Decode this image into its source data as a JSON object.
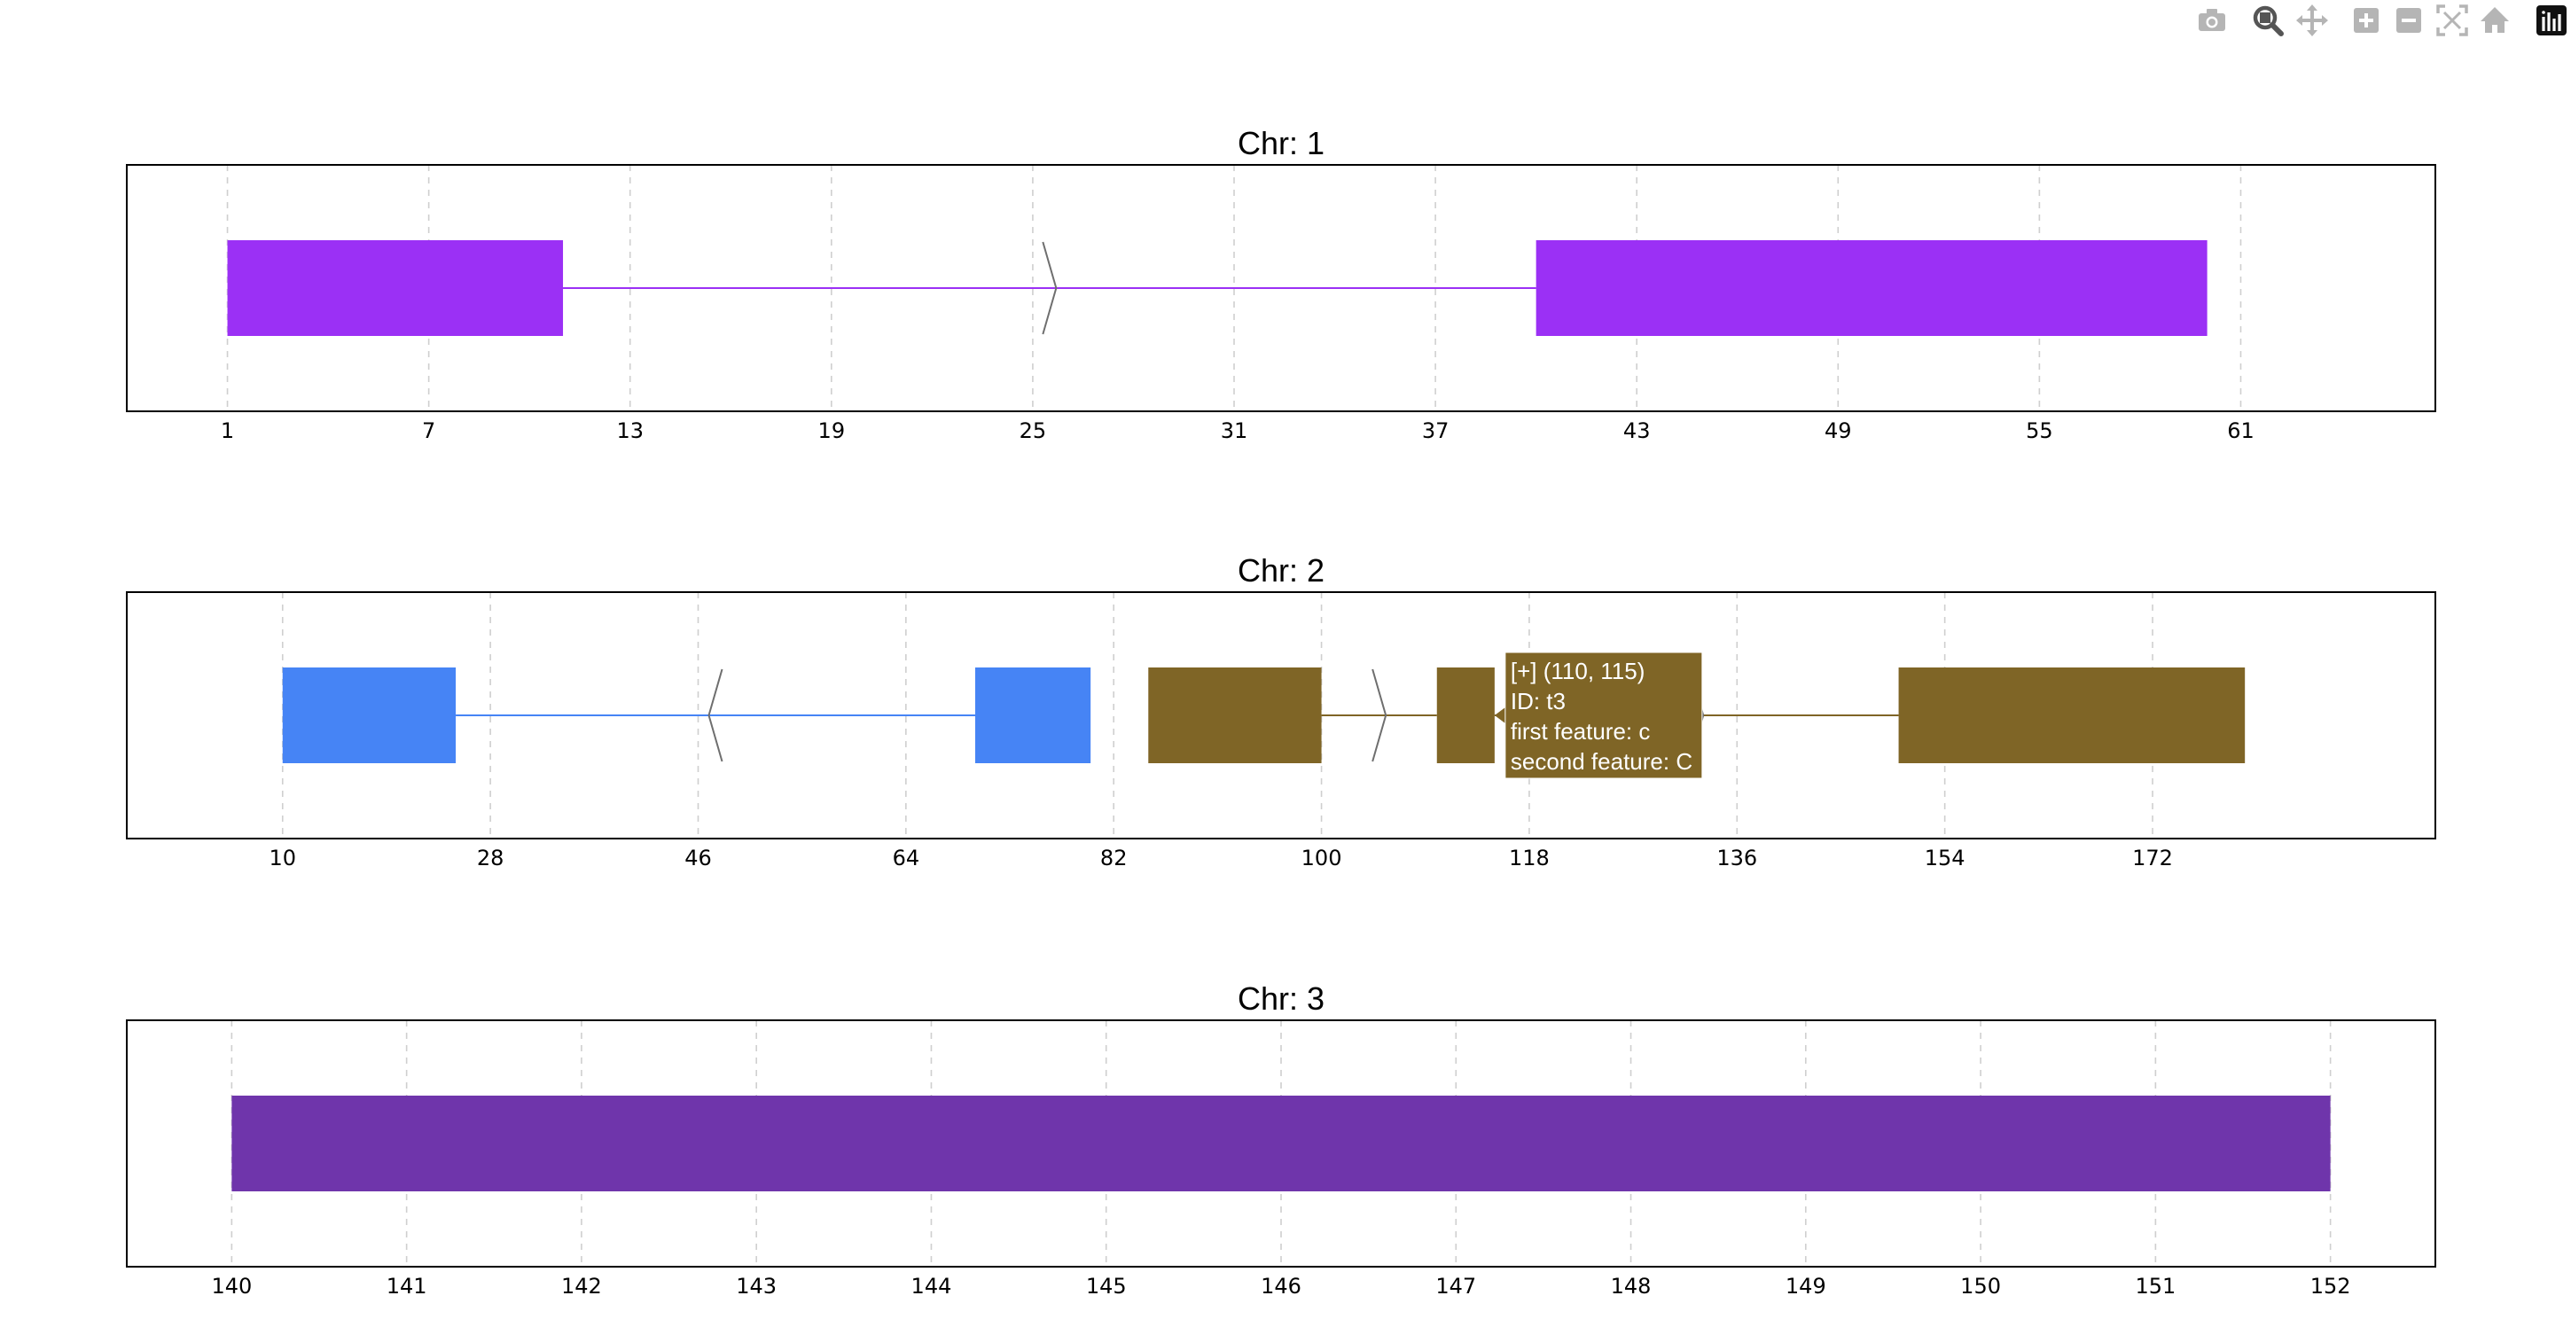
{
  "modebar": {
    "buttons": [
      {
        "icon": "camera-icon",
        "label": "Download plot as png"
      },
      {
        "icon": "zoom-icon",
        "label": "Zoom"
      },
      {
        "icon": "pan-icon",
        "label": "Pan"
      },
      {
        "icon": "zoom-in-icon",
        "label": "Zoom in"
      },
      {
        "icon": "zoom-out-icon",
        "label": "Zoom out"
      },
      {
        "icon": "autoscale-icon",
        "label": "Autoscale"
      },
      {
        "icon": "home-icon",
        "label": "Reset axes"
      },
      {
        "icon": "plotly-logo-icon",
        "label": "Produced with Plotly"
      }
    ],
    "active": "zoom-icon",
    "color_inactive": "#b5b5b5",
    "color_active": "#555555"
  },
  "chart_data": [
    {
      "type": "gene-structure",
      "title": "Chr: 1",
      "xlim": [
        -2.0,
        66.8
      ],
      "xticks": [
        1,
        7,
        13,
        19,
        25,
        31,
        37,
        43,
        49,
        55,
        61
      ],
      "grid": true,
      "transcripts": [
        {
          "strand": "+",
          "color": "#9b30f5",
          "exons": [
            [
              1,
              11
            ],
            [
              40,
              60
            ]
          ],
          "introns": [
            [
              11,
              40
            ]
          ],
          "arrows": [
            {
              "x": 25.5,
              "direction": "right"
            }
          ]
        }
      ]
    },
    {
      "type": "gene-structure",
      "title": "Chr: 2",
      "xlim": [
        -3.5,
        196.5
      ],
      "xticks": [
        10,
        28,
        46,
        64,
        82,
        100,
        118,
        136,
        154,
        172
      ],
      "grid": true,
      "transcripts": [
        {
          "strand": "-",
          "color": "#4684f5",
          "exons": [
            [
              10,
              25
            ],
            [
              70,
              80
            ]
          ],
          "introns": [
            [
              25,
              70
            ]
          ],
          "arrows": [
            {
              "x": 47.5,
              "direction": "left"
            }
          ]
        },
        {
          "strand": "+",
          "color": "#7f6526",
          "exons": [
            [
              85,
              100
            ],
            [
              110,
              115
            ],
            [
              150,
              180
            ]
          ],
          "introns": [
            [
              100,
              110
            ],
            [
              115,
              150
            ]
          ],
          "arrows": [
            {
              "x": 105,
              "direction": "right"
            },
            {
              "x": 132.5,
              "direction": "right"
            }
          ]
        }
      ],
      "tooltip": {
        "lines": [
          "[+] (110, 115)",
          "ID: t3",
          "first feature: c",
          "second feature: C"
        ],
        "color": "#7f6526",
        "anchor_x": 115
      }
    },
    {
      "type": "gene-structure",
      "title": "Chr: 3",
      "xlim": [
        139.4,
        152.6
      ],
      "xticks": [
        140,
        141,
        142,
        143,
        144,
        145,
        146,
        147,
        148,
        149,
        150,
        151,
        152
      ],
      "grid": true,
      "transcripts": [
        {
          "strand": "+",
          "color": "#6f35ab",
          "exons": [
            [
              140,
              152
            ]
          ],
          "introns": [],
          "arrows": []
        }
      ]
    }
  ]
}
